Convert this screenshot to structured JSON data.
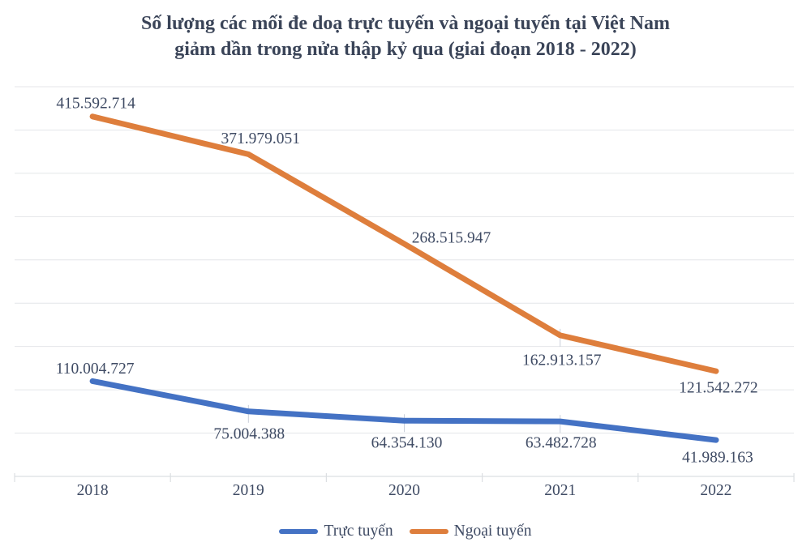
{
  "title": {
    "line1": "Số lượng các mối đe doạ trực tuyến và ngoại tuyến tại Việt Nam",
    "line2": "giảm dần trong nửa thập kỷ qua (giai đoạn 2018 - 2022)"
  },
  "colors": {
    "background": "#ffffff",
    "title_text": "#3A4458",
    "label_text": "#3F4B64",
    "grid": "#E4E6E9",
    "axis": "#DCDFE2",
    "leader": "#C9CFD9",
    "series_blue": "#4472C4",
    "series_orange": "#DE7E3C"
  },
  "chart_data": {
    "type": "line",
    "title": "Số lượng các mối đe doạ trực tuyến và ngoại tuyến tại Việt Nam giảm dần trong nửa thập kỷ qua (giai đoạn 2018 - 2022)",
    "categories": [
      "2018",
      "2019",
      "2020",
      "2021",
      "2022"
    ],
    "series": [
      {
        "name": "Trực tuyến",
        "color": "#4472C4",
        "values": [
          110004727,
          75004388,
          64354130,
          63482728,
          41989163
        ],
        "labels": [
          "110.004.727",
          "75.004.388",
          "64.354.130",
          "63.482.728",
          "41.989.163"
        ],
        "label_offsets": [
          [
            3,
            -16
          ],
          [
            1,
            27
          ],
          [
            3,
            27
          ],
          [
            1,
            26
          ],
          [
            2,
            21
          ]
        ]
      },
      {
        "name": "Ngoại tuyến",
        "color": "#DE7E3C",
        "values": [
          415592714,
          371979051,
          268515947,
          162913157,
          121542272
        ],
        "labels": [
          "415.592.714",
          "371.979.051",
          "268.515.947",
          "162.913.157",
          "121.542.272"
        ],
        "label_offsets": [
          [
            4,
            -17
          ],
          [
            15,
            -20
          ],
          [
            58,
            -8
          ],
          [
            2,
            30
          ],
          [
            3,
            20
          ]
        ]
      }
    ],
    "xlabel": "",
    "ylabel": "",
    "ylim": [
      0,
      450000000
    ],
    "grid_step": 50000000,
    "grid": true,
    "legend_position": "bottom",
    "data_labels": true
  }
}
